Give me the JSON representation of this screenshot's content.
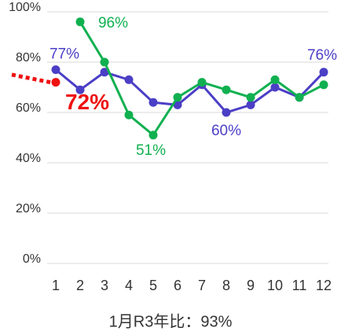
{
  "chart_data": {
    "type": "line",
    "categories": [
      "1",
      "2",
      "3",
      "4",
      "5",
      "6",
      "7",
      "8",
      "9",
      "10",
      "11",
      "12"
    ],
    "series": [
      {
        "color": "#4b3fc6",
        "values": [
          77,
          69,
          76,
          73,
          64,
          63,
          71,
          60,
          63,
          70,
          66,
          76
        ],
        "value_labels": [
          "77%",
          null,
          null,
          null,
          null,
          null,
          null,
          "60%",
          null,
          null,
          null,
          "76%"
        ]
      },
      {
        "color": "#10b050",
        "values": [
          null,
          96,
          80,
          59,
          51,
          66,
          72,
          69,
          66,
          73,
          66,
          71
        ],
        "value_labels": [
          null,
          "96%",
          null,
          null,
          "51%",
          null,
          null,
          null,
          null,
          null,
          null,
          null
        ]
      },
      {
        "color": "#ee1111",
        "values": [
          72,
          null,
          null,
          null,
          null,
          null,
          null,
          null,
          null,
          null,
          null,
          null
        ],
        "value_labels": [
          "72%",
          null,
          null,
          null,
          null,
          null,
          null,
          null,
          null,
          null,
          null,
          null
        ]
      }
    ],
    "ylim": [
      0,
      100
    ],
    "yticks": [
      {
        "value": 0,
        "label": "0%"
      },
      {
        "value": 20,
        "label": "20%"
      },
      {
        "value": 40,
        "label": "40%"
      },
      {
        "value": 60,
        "label": "60%"
      },
      {
        "value": 80,
        "label": "80%"
      },
      {
        "value": 100,
        "label": "100%"
      }
    ],
    "grid": true,
    "caption": "1月R3年比：93%"
  }
}
